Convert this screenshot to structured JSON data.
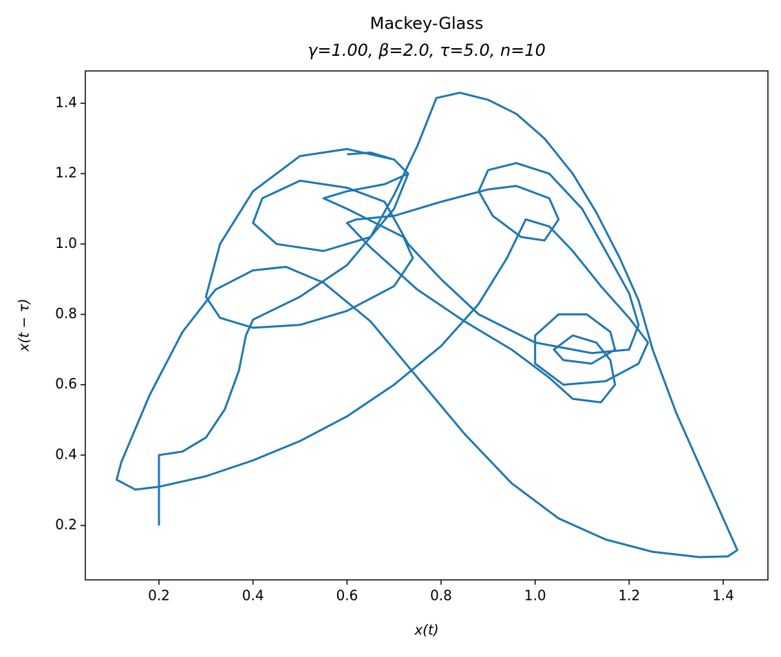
{
  "chart_data": {
    "type": "line",
    "title": "Mackey-Glass",
    "subtitle": "γ=1.00, β=2.0, τ=5.0, n=10",
    "x_label": "x(t)",
    "y_label": "x(t − τ)",
    "color": "#1f77b4",
    "xlim": [
      0.0434,
      1.4951
    ],
    "ylim": [
      0.0453,
      1.492
    ],
    "xticks": [
      0.2,
      0.4,
      0.6,
      0.8,
      {
        "value": 1,
        "label": "1.0"
      },
      1.2,
      1.4
    ],
    "yticks": [
      0.2,
      0.4,
      0.6,
      0.8,
      {
        "value": 1,
        "label": "1.0"
      },
      1.2,
      1.4
    ],
    "x": [
      0.2,
      0.2,
      0.25,
      0.3,
      0.34,
      0.37,
      0.385,
      0.4,
      0.5,
      0.6,
      0.65,
      0.7,
      0.75,
      0.79,
      0.84,
      0.9,
      0.96,
      1.02,
      1.08,
      1.13,
      1.18,
      1.22,
      1.25,
      1.3,
      1.35,
      1.4,
      1.43,
      1.41,
      1.35,
      1.25,
      1.15,
      1.05,
      0.95,
      0.85,
      0.75,
      0.65,
      0.55,
      0.47,
      0.4,
      0.32,
      0.25,
      0.18,
      0.12,
      0.11,
      0.15,
      0.2,
      0.3,
      0.4,
      0.5,
      0.6,
      0.7,
      0.8,
      0.88,
      0.94,
      0.98,
      1.03,
      1.08,
      1.14,
      1.2,
      1.24,
      1.22,
      1.15,
      1.06,
      1.0,
      1.0,
      1.05,
      1.11,
      1.16,
      1.17,
      1.12,
      1.06,
      1.04,
      1.08,
      1.13,
      1.16,
      1.17,
      1.14,
      1.08,
      1.03,
      0.95,
      0.85,
      0.75,
      0.65,
      0.6,
      0.62,
      0.7,
      0.8,
      0.9,
      0.96,
      1.03,
      1.05,
      1.02,
      0.97,
      0.91,
      0.88,
      0.9,
      0.96,
      1.03,
      1.1,
      1.15,
      1.2,
      1.22,
      1.2,
      1.12,
      1.0,
      0.88,
      0.8,
      0.73,
      0.68,
      0.6,
      0.5,
      0.42,
      0.4,
      0.45,
      0.55,
      0.65,
      0.7,
      0.73,
      0.7,
      0.6,
      0.5,
      0.4,
      0.33,
      0.3,
      0.33,
      0.4,
      0.5,
      0.6,
      0.7,
      0.74,
      0.72,
      0.66,
      0.6,
      0.55,
      0.6,
      0.68,
      0.73,
      0.7,
      0.65,
      0.6
    ],
    "values": [
      0.2,
      0.4,
      0.41,
      0.45,
      0.53,
      0.64,
      0.74,
      0.785,
      0.85,
      0.94,
      1.02,
      1.14,
      1.28,
      1.415,
      1.43,
      1.41,
      1.37,
      1.3,
      1.2,
      1.09,
      0.96,
      0.84,
      0.7,
      0.52,
      0.37,
      0.22,
      0.13,
      0.112,
      0.11,
      0.125,
      0.16,
      0.22,
      0.32,
      0.46,
      0.62,
      0.78,
      0.89,
      0.935,
      0.925,
      0.87,
      0.75,
      0.57,
      0.38,
      0.33,
      0.302,
      0.31,
      0.34,
      0.385,
      0.44,
      0.51,
      0.6,
      0.71,
      0.83,
      0.96,
      1.07,
      1.05,
      0.98,
      0.88,
      0.79,
      0.72,
      0.66,
      0.61,
      0.6,
      0.66,
      0.74,
      0.8,
      0.8,
      0.75,
      0.7,
      0.66,
      0.67,
      0.7,
      0.74,
      0.72,
      0.67,
      0.6,
      0.55,
      0.56,
      0.62,
      0.7,
      0.78,
      0.87,
      0.99,
      1.06,
      1.07,
      1.08,
      1.12,
      1.155,
      1.165,
      1.13,
      1.07,
      1.01,
      1.02,
      1.08,
      1.15,
      1.21,
      1.23,
      1.2,
      1.1,
      0.98,
      0.86,
      0.77,
      0.7,
      0.69,
      0.72,
      0.8,
      0.9,
      1.0,
      1.12,
      1.16,
      1.18,
      1.13,
      1.06,
      1.0,
      0.98,
      1.02,
      1.1,
      1.2,
      1.24,
      1.27,
      1.25,
      1.15,
      1.0,
      0.85,
      0.79,
      0.762,
      0.77,
      0.81,
      0.88,
      0.96,
      1.02,
      1.06,
      1.1,
      1.13,
      1.15,
      1.17,
      1.2,
      1.24,
      1.26,
      1.255
    ]
  }
}
